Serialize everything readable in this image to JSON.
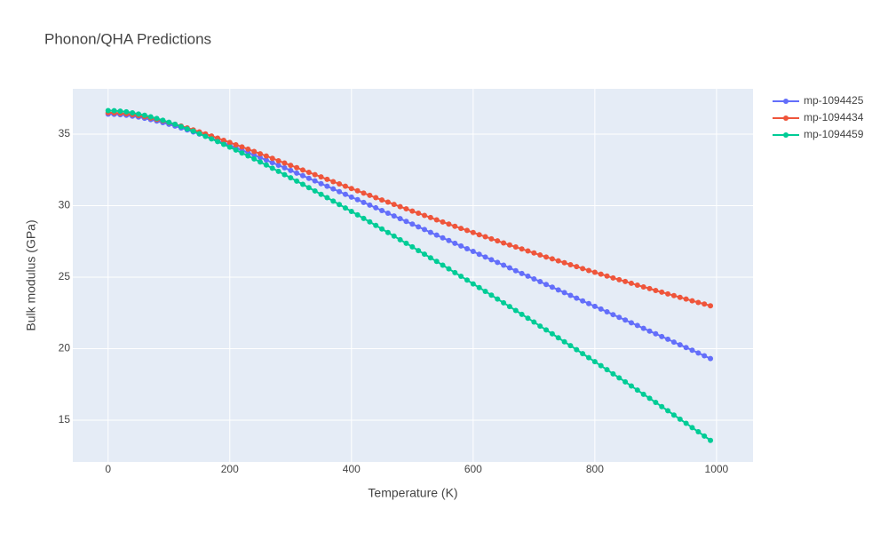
{
  "chart_data": {
    "type": "line",
    "title": "Phonon/QHA Predictions",
    "xlabel": "Temperature (K)",
    "ylabel": "Bulk modulus (GPa)",
    "x": [
      0,
      10,
      20,
      30,
      40,
      50,
      60,
      70,
      80,
      90,
      100,
      110,
      120,
      130,
      140,
      150,
      160,
      170,
      180,
      190,
      200,
      210,
      220,
      230,
      240,
      250,
      260,
      270,
      280,
      290,
      300,
      310,
      320,
      330,
      340,
      350,
      360,
      370,
      380,
      390,
      400,
      410,
      420,
      430,
      440,
      450,
      460,
      470,
      480,
      490,
      500,
      510,
      520,
      530,
      540,
      550,
      560,
      570,
      580,
      590,
      600,
      610,
      620,
      630,
      640,
      650,
      660,
      670,
      680,
      690,
      700,
      710,
      720,
      730,
      740,
      750,
      760,
      770,
      780,
      790,
      800,
      810,
      820,
      830,
      840,
      850,
      860,
      870,
      880,
      890,
      900,
      910,
      920,
      930,
      940,
      950,
      960,
      970,
      980,
      990
    ],
    "series": [
      {
        "name": "mp-1094425",
        "color": "#636efa",
        "values": [
          36.4,
          36.39,
          36.36,
          36.32,
          36.26,
          36.2,
          36.11,
          36.02,
          35.92,
          35.81,
          35.69,
          35.57,
          35.44,
          35.3,
          35.16,
          35.01,
          34.86,
          34.71,
          34.55,
          34.38,
          34.22,
          34.05,
          33.88,
          33.71,
          33.54,
          33.36,
          33.19,
          33.01,
          32.83,
          32.65,
          32.46,
          32.28,
          32.1,
          31.91,
          31.73,
          31.54,
          31.36,
          31.17,
          30.98,
          30.79,
          30.6,
          30.42,
          30.23,
          30.04,
          29.85,
          29.66,
          29.47,
          29.28,
          29.09,
          28.9,
          28.71,
          28.52,
          28.33,
          28.13,
          27.94,
          27.75,
          27.56,
          27.37,
          27.18,
          26.99,
          26.8,
          26.6,
          26.41,
          26.22,
          26.03,
          25.84,
          25.65,
          25.45,
          25.26,
          25.07,
          24.88,
          24.69,
          24.49,
          24.3,
          24.11,
          23.92,
          23.73,
          23.53,
          23.34,
          23.15,
          22.96,
          22.77,
          22.58,
          22.38,
          22.19,
          22.0,
          21.81,
          21.62,
          21.42,
          21.23,
          21.04,
          20.85,
          20.66,
          20.46,
          20.27,
          20.08,
          19.89,
          19.7,
          19.5,
          19.31
        ]
      },
      {
        "name": "mp-1094434",
        "color": "#ef553b",
        "values": [
          36.5,
          36.49,
          36.46,
          36.42,
          36.37,
          36.3,
          36.22,
          36.13,
          36.03,
          35.93,
          35.81,
          35.69,
          35.57,
          35.44,
          35.3,
          35.16,
          35.02,
          34.87,
          34.72,
          34.57,
          34.42,
          34.26,
          34.11,
          33.95,
          33.79,
          33.63,
          33.47,
          33.31,
          33.14,
          32.98,
          32.82,
          32.66,
          32.49,
          32.33,
          32.17,
          32.01,
          31.84,
          31.68,
          31.52,
          31.36,
          31.2,
          31.04,
          30.88,
          30.72,
          30.56,
          30.4,
          30.25,
          30.09,
          29.93,
          29.78,
          29.62,
          29.47,
          29.32,
          29.17,
          29.01,
          28.86,
          28.71,
          28.56,
          28.41,
          28.27,
          28.12,
          27.97,
          27.83,
          27.68,
          27.54,
          27.39,
          27.25,
          27.11,
          26.97,
          26.83,
          26.69,
          26.55,
          26.41,
          26.28,
          26.14,
          26.01,
          25.87,
          25.74,
          25.6,
          25.47,
          25.34,
          25.21,
          25.08,
          24.95,
          24.82,
          24.7,
          24.57,
          24.44,
          24.32,
          24.2,
          24.07,
          23.95,
          23.83,
          23.71,
          23.59,
          23.47,
          23.35,
          23.23,
          23.12,
          23.0
        ]
      },
      {
        "name": "mp-1094459",
        "color": "#00cc96",
        "values": [
          36.65,
          36.64,
          36.61,
          36.56,
          36.49,
          36.41,
          36.32,
          36.21,
          36.1,
          35.97,
          35.83,
          35.69,
          35.53,
          35.37,
          35.21,
          35.03,
          34.85,
          34.67,
          34.48,
          34.29,
          34.09,
          33.89,
          33.68,
          33.48,
          33.27,
          33.05,
          32.84,
          32.62,
          32.4,
          32.17,
          31.95,
          31.72,
          31.49,
          31.26,
          31.03,
          30.79,
          30.56,
          30.32,
          30.08,
          29.84,
          29.6,
          29.36,
          29.11,
          28.87,
          28.62,
          28.37,
          28.12,
          27.87,
          27.62,
          27.37,
          27.12,
          26.86,
          26.61,
          26.35,
          26.1,
          25.84,
          25.58,
          25.32,
          25.06,
          24.8,
          24.53,
          24.27,
          24.01,
          23.74,
          23.47,
          23.21,
          22.94,
          22.67,
          22.4,
          22.13,
          21.86,
          21.58,
          21.31,
          21.04,
          20.76,
          20.48,
          20.21,
          19.93,
          19.65,
          19.37,
          19.09,
          18.81,
          18.53,
          18.24,
          17.96,
          17.68,
          17.39,
          17.1,
          16.81,
          16.53,
          16.24,
          15.95,
          15.66,
          15.36,
          15.07,
          14.78,
          14.48,
          14.19,
          13.89,
          13.59
        ]
      }
    ],
    "xlim": [
      -58,
      1060
    ],
    "ylim": [
      12.08,
      38.17
    ],
    "xticks": [
      0,
      200,
      400,
      600,
      800,
      1000
    ],
    "yticks": [
      15,
      20,
      25,
      30,
      35
    ],
    "grid": true,
    "legend": "right"
  }
}
